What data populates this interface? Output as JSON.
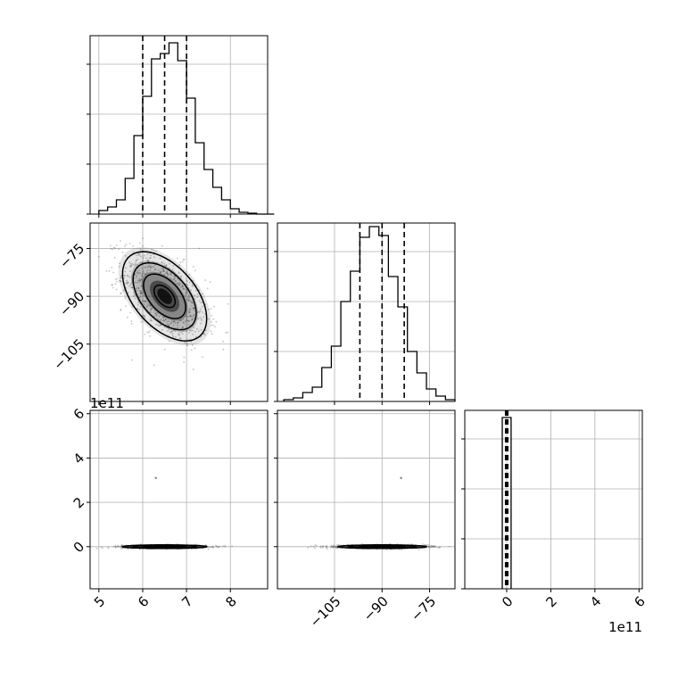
{
  "chart_data": {
    "type": "corner",
    "parameters": [
      "p0",
      "p1",
      "p2"
    ],
    "grid": true,
    "colors": {
      "line": "#000000",
      "grid": "#b0b0b0",
      "frame": "#000000",
      "density": "#000000"
    },
    "quantile_style": "dashed",
    "panels": [
      {
        "id": "hist-0",
        "type": "histogram",
        "param": 0,
        "xlim": [
          4.8,
          8.85
        ],
        "ylim": [
          0,
          1
        ],
        "bin_start": 5.0,
        "bin_width": 0.2,
        "counts": [
          0.02,
          0.04,
          0.08,
          0.2,
          0.44,
          0.66,
          0.87,
          0.9,
          0.96,
          0.86,
          0.65,
          0.4,
          0.25,
          0.15,
          0.08,
          0.03,
          0.01,
          0.005,
          0,
          0
        ],
        "quantiles": [
          6.0,
          6.5,
          7.0
        ]
      },
      {
        "id": "hist-1",
        "type": "histogram",
        "param": 1,
        "xlim": [
          -123,
          -67
        ],
        "ylim": [
          0,
          1
        ],
        "bin_start": -121,
        "bin_width": 3,
        "counts": [
          0.01,
          0.02,
          0.05,
          0.08,
          0.19,
          0.31,
          0.56,
          0.73,
          0.92,
          0.98,
          0.93,
          0.7,
          0.53,
          0.28,
          0.16,
          0.07,
          0.03,
          0.01
        ],
        "quantiles": [
          -97,
          -90,
          -83
        ]
      },
      {
        "id": "hist-2",
        "type": "histogram",
        "param": 2,
        "xlim": [
          -1.9,
          6.15
        ],
        "ylim": [
          0,
          1
        ],
        "bin_start": -0.2,
        "bin_width": 0.4,
        "counts": [
          0.96
        ],
        "quantiles": [
          -0.05,
          0,
          0.05
        ]
      },
      {
        "id": "scatter-1-0",
        "type": "2d-density",
        "x_param": 0,
        "y_param": 1,
        "xlim": [
          4.8,
          8.85
        ],
        "ylim": [
          -123,
          -67
        ],
        "mean": [
          6.5,
          -90
        ],
        "sigma": [
          0.48,
          7.0
        ],
        "rho": -0.5,
        "contour_levels_sigma": [
          0.5,
          1,
          1.5,
          2
        ]
      },
      {
        "id": "scatter-2-0",
        "type": "2d-density",
        "x_param": 0,
        "y_param": 2,
        "xlim": [
          4.8,
          8.85
        ],
        "ylim": [
          -1.9,
          6.15
        ],
        "mean": [
          6.5,
          0
        ],
        "sigma": [
          0.48,
          0.04
        ],
        "rho": 0,
        "contour_levels_sigma": [
          0.5,
          1,
          1.5,
          2
        ],
        "outlier": [
          6.3,
          3.1
        ]
      },
      {
        "id": "scatter-2-1",
        "type": "2d-density",
        "x_param": 1,
        "y_param": 2,
        "xlim": [
          -123,
          -67
        ],
        "ylim": [
          -1.9,
          6.15
        ],
        "mean": [
          -90,
          0
        ],
        "sigma": [
          7.0,
          0.04
        ],
        "rho": 0,
        "contour_levels_sigma": [
          0.5,
          1,
          1.5,
          2
        ],
        "outlier": [
          -84,
          3.1
        ]
      }
    ],
    "axis_ticks": {
      "p0_x": {
        "values": [
          5,
          6,
          7,
          8
        ],
        "labels": [
          "5",
          "6",
          "7",
          "8"
        ]
      },
      "p1_x": {
        "values": [
          -105,
          -90,
          -75
        ],
        "labels": [
          "−105",
          "−90",
          "−75"
        ]
      },
      "p1_y": {
        "values": [
          -105,
          -90,
          -75
        ],
        "labels": [
          "−105",
          "−90",
          "−75"
        ]
      },
      "p2_x": {
        "values": [
          0,
          2,
          4,
          6
        ],
        "labels": [
          "0",
          "2",
          "4",
          "6"
        ]
      },
      "p2_y": {
        "values": [
          0,
          2,
          4,
          6
        ],
        "labels": [
          "0",
          "2",
          "4",
          "6"
        ]
      }
    },
    "offset_labels": {
      "p2_y": "1e11",
      "p2_x": "1e11"
    }
  }
}
